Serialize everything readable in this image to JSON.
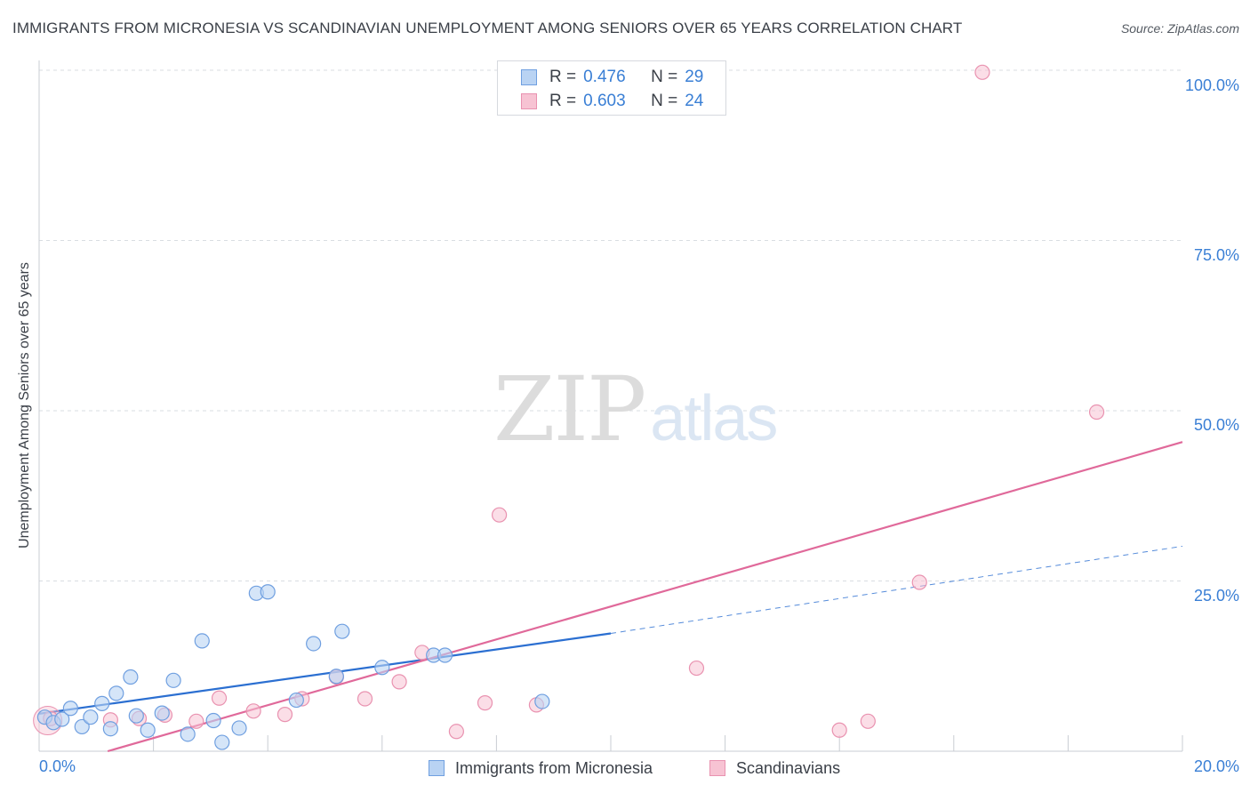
{
  "title": "IMMIGRANTS FROM MICRONESIA VS SCANDINAVIAN UNEMPLOYMENT AMONG SENIORS OVER 65 YEARS CORRELATION CHART",
  "source": "Source: ZipAtlas.com",
  "watermark": {
    "zip": "ZIP",
    "atlas": "atlas"
  },
  "legend_top": [
    {
      "r_label": "R =",
      "r": "0.476",
      "n_label": "N =",
      "n": "29"
    },
    {
      "r_label": "R =",
      "r": "0.603",
      "n_label": "N =",
      "n": "24"
    }
  ],
  "legend_bottom": [
    {
      "label": "Immigrants from Micronesia"
    },
    {
      "label": "Scandinavians"
    }
  ],
  "chart_data": {
    "type": "scatter",
    "title": "IMMIGRANTS FROM MICRONESIA VS SCANDINAVIAN UNEMPLOYMENT AMONG SENIORS OVER 65 YEARS CORRELATION CHART",
    "xlabel": "",
    "ylabel": "Unemployment Among Seniors over 65 years",
    "xlim": [
      0,
      20
    ],
    "ylim": [
      0,
      100
    ],
    "x_tick_labels": [
      "0.0%",
      "20.0%"
    ],
    "y_ticks": [
      25,
      50,
      75,
      100
    ],
    "y_tick_labels": [
      "25.0%",
      "50.0%",
      "75.0%",
      "100.0%"
    ],
    "grid": true,
    "colors": {
      "blue_fill": "#b9d3f3",
      "blue_stroke": "#6f9fe0",
      "blue_line": "#2b6fd1",
      "pink_fill": "#f7c3d3",
      "pink_stroke": "#e992b0",
      "pink_line": "#e0699a"
    },
    "series": [
      {
        "name": "Immigrants from Micronesia",
        "color": "#2b6fd1",
        "R": 0.476,
        "N": 29,
        "points": [
          [
            0.1,
            5.0
          ],
          [
            0.25,
            4.2
          ],
          [
            0.4,
            4.7
          ],
          [
            0.55,
            6.3
          ],
          [
            0.75,
            3.6
          ],
          [
            0.9,
            5.0
          ],
          [
            1.1,
            7.0
          ],
          [
            1.25,
            3.3
          ],
          [
            1.35,
            8.5
          ],
          [
            1.6,
            10.9
          ],
          [
            1.7,
            5.2
          ],
          [
            1.9,
            3.1
          ],
          [
            2.15,
            5.6
          ],
          [
            2.35,
            10.4
          ],
          [
            2.6,
            2.5
          ],
          [
            2.85,
            16.2
          ],
          [
            3.05,
            4.5
          ],
          [
            3.2,
            1.3
          ],
          [
            3.5,
            3.4
          ],
          [
            3.8,
            23.2
          ],
          [
            4.0,
            23.4
          ],
          [
            4.5,
            7.5
          ],
          [
            4.8,
            15.8
          ],
          [
            5.2,
            11.0
          ],
          [
            5.3,
            17.6
          ],
          [
            6.0,
            12.3
          ],
          [
            6.9,
            14.1
          ],
          [
            7.1,
            14.1
          ],
          [
            8.8,
            7.3
          ]
        ],
        "trend": {
          "x": [
            0,
            10
          ],
          "y": [
            5.5,
            17.3
          ]
        },
        "trend_extension": {
          "x": [
            10,
            20
          ],
          "y": [
            17.3,
            30.1
          ]
        }
      },
      {
        "name": "Scandinavians",
        "color": "#e0699a",
        "R": 0.603,
        "N": 24,
        "points": [
          [
            0.2,
            4.8
          ],
          [
            1.25,
            4.6
          ],
          [
            1.75,
            4.8
          ],
          [
            2.2,
            5.3
          ],
          [
            2.75,
            4.4
          ],
          [
            3.15,
            7.8
          ],
          [
            3.75,
            5.9
          ],
          [
            4.3,
            5.4
          ],
          [
            4.6,
            7.7
          ],
          [
            5.2,
            10.9
          ],
          [
            5.7,
            7.7
          ],
          [
            6.3,
            10.2
          ],
          [
            6.7,
            14.5
          ],
          [
            7.3,
            2.9
          ],
          [
            7.8,
            7.1
          ],
          [
            8.05,
            34.7
          ],
          [
            8.7,
            6.8
          ],
          [
            11.5,
            12.2
          ],
          [
            14.0,
            3.1
          ],
          [
            14.5,
            4.4
          ],
          [
            15.4,
            24.8
          ],
          [
            16.5,
            99.7
          ],
          [
            18.5,
            49.8
          ],
          [
            0.15,
            4.6
          ]
        ],
        "trend": {
          "x": [
            1.2,
            20
          ],
          "y": [
            0,
            45.4
          ]
        }
      }
    ]
  }
}
